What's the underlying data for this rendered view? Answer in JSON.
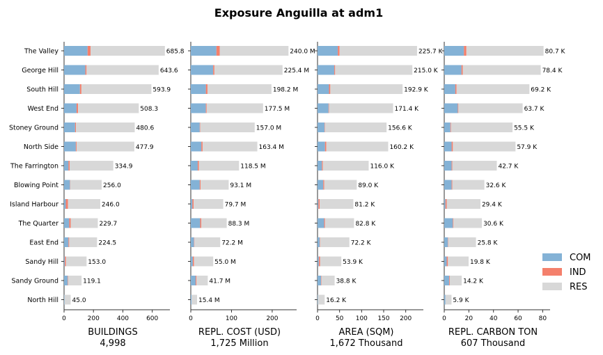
{
  "chart_data": {
    "type": "bar",
    "orientation": "horizontal",
    "stacked": true,
    "title": "Exposure Anguilla at adm1",
    "categories": [
      "The Valley",
      "George Hill",
      "South Hill",
      "West End",
      "Stoney Ground",
      "North Side",
      "The Farrington",
      "Blowing Point",
      "Island Harbour",
      "The Quarter",
      "East End",
      "Sandy Hill",
      "Sandy Ground",
      "North Hill"
    ],
    "legend": {
      "position": "right",
      "entries": [
        {
          "name": "COM",
          "color": "#84b2d6"
        },
        {
          "name": "IND",
          "color": "#f4806c"
        },
        {
          "name": "RES",
          "color": "#d8d8d8"
        }
      ]
    },
    "panels": [
      {
        "xlabel": "BUILDINGS",
        "total": "4,998",
        "xlim": [
          0,
          720
        ],
        "xticks": [
          0,
          200,
          400,
          600
        ],
        "series": [
          {
            "name": "COM",
            "values": [
              160,
              145,
              108,
              85,
              75,
              80,
              30,
              40,
              12,
              35,
              30,
              5,
              25,
              3
            ]
          },
          {
            "name": "IND",
            "values": [
              20,
              8,
              10,
              10,
              6,
              5,
              8,
              2,
              15,
              10,
              5,
              8,
              3,
              0
            ]
          },
          {
            "name": "RES",
            "values": [
              505.8,
              490.6,
              475.9,
              413.3,
              399.6,
              392.9,
              296.9,
              214.0,
              219.0,
              184.7,
              189.5,
              140.0,
              91.1,
              42.0
            ]
          }
        ],
        "labels": [
          "685.8",
          "643.6",
          "593.9",
          "508.3",
          "480.6",
          "477.9",
          "334.9",
          "256.0",
          "246.0",
          "229.7",
          "224.5",
          "153.0",
          "119.1",
          "45.0"
        ]
      },
      {
        "xlabel": "REPL. COST (USD)",
        "total": "1,725 Million",
        "xlim": [
          0,
          260
        ],
        "xticks": [
          0,
          100,
          200
        ],
        "series": [
          {
            "name": "COM",
            "values": [
              63,
              55,
              37,
              37,
              22,
              26,
              17,
              22,
              4,
              23,
              8,
              5,
              12,
              2
            ]
          },
          {
            "name": "IND",
            "values": [
              8,
              3,
              4,
              2,
              1,
              3,
              3,
              2,
              3,
              3,
              1,
              3,
              2,
              0
            ]
          },
          {
            "name": "RES",
            "values": [
              169.0,
              167.4,
              157.2,
              138.5,
              134.0,
              134.4,
              98.5,
              69.1,
              72.7,
              62.3,
              63.2,
              47.0,
              27.7,
              13.4
            ]
          }
        ],
        "labels": [
          "240.0 M",
          "225.4 M",
          "198.2 M",
          "177.5 M",
          "157.0 M",
          "163.4 M",
          "118.5 M",
          "93.1 M",
          "79.7 M",
          "88.3 M",
          "72.2 M",
          "55.0 M",
          "41.7 M",
          "15.4 M"
        ]
      },
      {
        "xlabel": "AREA (SQM)",
        "total": "1,672 Thousand",
        "xlim": [
          0,
          240
        ],
        "xticks": [
          0,
          50,
          100,
          150,
          200
        ],
        "series": [
          {
            "name": "COM",
            "values": [
              46,
              38,
              26,
              25,
              16,
              17,
              10,
              13,
              2,
              15,
              5,
              3,
              8,
              1
            ]
          },
          {
            "name": "IND",
            "values": [
              4,
              2,
              3,
              1,
              1,
              3,
              2,
              2,
              3,
              2,
              1,
              3,
              1,
              0
            ]
          },
          {
            "name": "RES",
            "values": [
              175.7,
              175.0,
              163.9,
              145.4,
              139.6,
              140.2,
              104.0,
              74.0,
              76.2,
              65.8,
              66.2,
              47.9,
              29.8,
              15.2
            ]
          }
        ],
        "labels": [
          "225.7 K",
          "215.0 K",
          "192.9 K",
          "171.4 K",
          "156.6 K",
          "160.2 K",
          "116.0 K",
          "89.0 K",
          "81.2 K",
          "82.8 K",
          "72.2 K",
          "53.9 K",
          "38.8 K",
          "16.2 K"
        ]
      },
      {
        "xlabel": "REPL. CARBON TON",
        "total": "607 Thousand",
        "xlim": [
          0,
          86
        ],
        "xticks": [
          0,
          20,
          40,
          60,
          80
        ],
        "series": [
          {
            "name": "COM",
            "values": [
              16,
              14,
              9,
              11,
              5,
              6,
              6,
              6,
              1,
              7,
              3,
              2,
              4,
              1
            ]
          },
          {
            "name": "IND",
            "values": [
              2,
              1,
              1,
              0.5,
              0.5,
              1,
              0.5,
              0.5,
              1,
              0.5,
              0.3,
              1,
              0.5,
              0
            ]
          },
          {
            "name": "RES",
            "values": [
              62.7,
              63.4,
              59.2,
              52.2,
              50.0,
              50.9,
              36.2,
              26.1,
              27.4,
              23.1,
              22.5,
              16.8,
              9.7,
              4.9
            ]
          }
        ],
        "labels": [
          "80.7 K",
          "78.4 K",
          "69.2 K",
          "63.7 K",
          "55.5 K",
          "57.9 K",
          "42.7 K",
          "32.6 K",
          "29.4 K",
          "30.6 K",
          "25.8 K",
          "19.8 K",
          "14.2 K",
          "5.9 K"
        ]
      }
    ]
  }
}
